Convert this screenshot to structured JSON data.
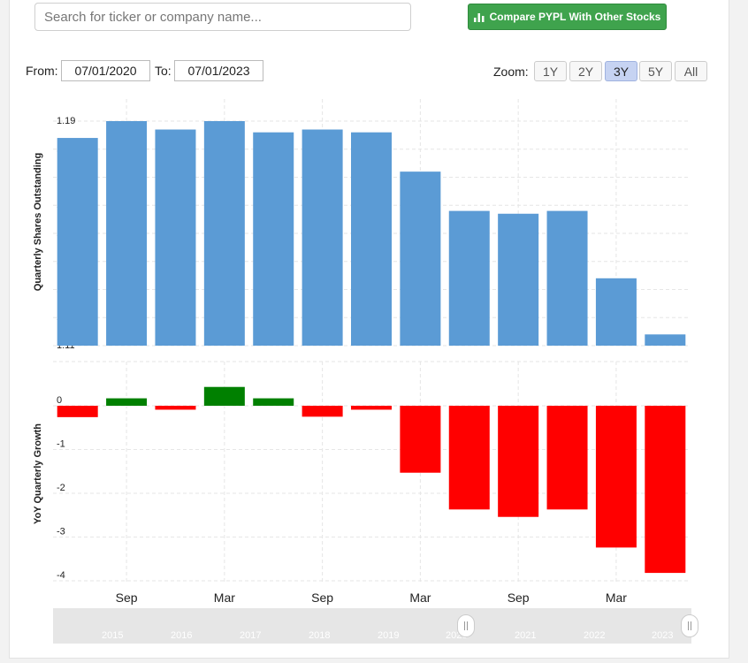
{
  "search": {
    "placeholder": "Search for ticker or company name..."
  },
  "compare_button": {
    "label": "Compare PYPL With Other Stocks",
    "color": "#3fa34d"
  },
  "date_range": {
    "from_label": "From:",
    "from_value": "07/01/2020",
    "to_label": "To:",
    "to_value": "07/01/2023"
  },
  "zoom": {
    "label": "Zoom:",
    "options": [
      "1Y",
      "2Y",
      "3Y",
      "5Y",
      "All"
    ],
    "active": "3Y"
  },
  "navigator": {
    "years": [
      "2015",
      "2016",
      "2017",
      "2018",
      "2019",
      "2020",
      "2021",
      "2022",
      "2023"
    ]
  },
  "chart_data": [
    {
      "type": "bar",
      "ylabel": "Quarterly Shares Outstanding",
      "ylim": [
        1.11,
        1.19
      ],
      "yticks": [
        "1.19",
        "1.18",
        "1.17",
        "1.16",
        "1.15",
        "1.14",
        "1.13",
        "1.12",
        "1.11"
      ],
      "color": "#5b9bd5",
      "values": [
        1.184,
        1.19,
        1.187,
        1.19,
        1.186,
        1.187,
        1.186,
        1.172,
        1.158,
        1.157,
        1.158,
        1.134,
        1.114
      ]
    },
    {
      "type": "bar",
      "ylabel": "YoY Quarterly Growth",
      "ylim": [
        -4,
        0
      ],
      "yticks": [
        "0",
        "-1",
        "-2",
        "-3",
        "-4"
      ],
      "positive_color": "#008000",
      "negative_color": "#ff0000",
      "values": [
        -0.26,
        0.17,
        -0.09,
        0.43,
        0.17,
        -0.25,
        -0.09,
        -1.53,
        -2.37,
        -2.54,
        -2.37,
        -3.24,
        -3.82
      ],
      "xticks": [
        "Sep",
        "Mar",
        "Sep",
        "Mar",
        "Sep",
        "Mar"
      ]
    }
  ]
}
